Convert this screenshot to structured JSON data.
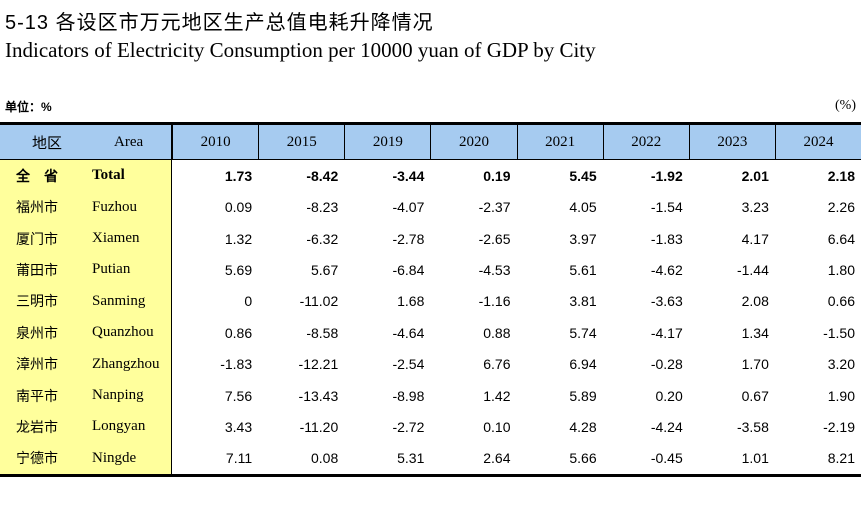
{
  "page": {
    "title": "5-13 各设区市万元地区生产总值电耗升降情况",
    "subtitle": "Indicators of Electricity Consumption per 10000 yuan of GDP by City",
    "unit_left": "单位：%",
    "unit_right": "(%)"
  },
  "colors": {
    "header_bg": "#A6CBF0",
    "area_bg": "#FFFF9C",
    "border": "#000000"
  },
  "table": {
    "header": {
      "area_cn": "地区",
      "area_en": "Area",
      "years": [
        "2010",
        "2015",
        "2019",
        "2020",
        "2021",
        "2022",
        "2023",
        "2024"
      ]
    },
    "rows": [
      {
        "cn": "全　省",
        "en": "Total",
        "bold": true,
        "values": [
          "1.73",
          "-8.42",
          "-3.44",
          "0.19",
          "5.45",
          "-1.92",
          "2.01",
          "2.18"
        ]
      },
      {
        "cn": "福州市",
        "en": "Fuzhou",
        "bold": false,
        "values": [
          "0.09",
          "-8.23",
          "-4.07",
          "-2.37",
          "4.05",
          "-1.54",
          "3.23",
          "2.26"
        ]
      },
      {
        "cn": "厦门市",
        "en": "Xiamen",
        "bold": false,
        "values": [
          "1.32",
          "-6.32",
          "-2.78",
          "-2.65",
          "3.97",
          "-1.83",
          "4.17",
          "6.64"
        ]
      },
      {
        "cn": "莆田市",
        "en": "Putian",
        "bold": false,
        "values": [
          "5.69",
          "5.67",
          "-6.84",
          "-4.53",
          "5.61",
          "-4.62",
          "-1.44",
          "1.80"
        ]
      },
      {
        "cn": "三明市",
        "en": "Sanming",
        "bold": false,
        "values": [
          "0",
          "-11.02",
          "1.68",
          "-1.16",
          "3.81",
          "-3.63",
          "2.08",
          "0.66"
        ]
      },
      {
        "cn": "泉州市",
        "en": "Quanzhou",
        "bold": false,
        "values": [
          "0.86",
          "-8.58",
          "-4.64",
          "0.88",
          "5.74",
          "-4.17",
          "1.34",
          "-1.50"
        ]
      },
      {
        "cn": "漳州市",
        "en": "Zhangzhou",
        "bold": false,
        "values": [
          "-1.83",
          "-12.21",
          "-2.54",
          "6.76",
          "6.94",
          "-0.28",
          "1.70",
          "3.20"
        ]
      },
      {
        "cn": "南平市",
        "en": "Nanping",
        "bold": false,
        "values": [
          "7.56",
          "-13.43",
          "-8.98",
          "1.42",
          "5.89",
          "0.20",
          "0.67",
          "1.90"
        ]
      },
      {
        "cn": "龙岩市",
        "en": "Longyan",
        "bold": false,
        "values": [
          "3.43",
          "-11.20",
          "-2.72",
          "0.10",
          "4.28",
          "-4.24",
          "-3.58",
          "-2.19"
        ]
      },
      {
        "cn": "宁德市",
        "en": "Ningde",
        "bold": false,
        "values": [
          "7.11",
          "0.08",
          "5.31",
          "2.64",
          "5.66",
          "-0.45",
          "1.01",
          "8.21"
        ]
      }
    ]
  }
}
